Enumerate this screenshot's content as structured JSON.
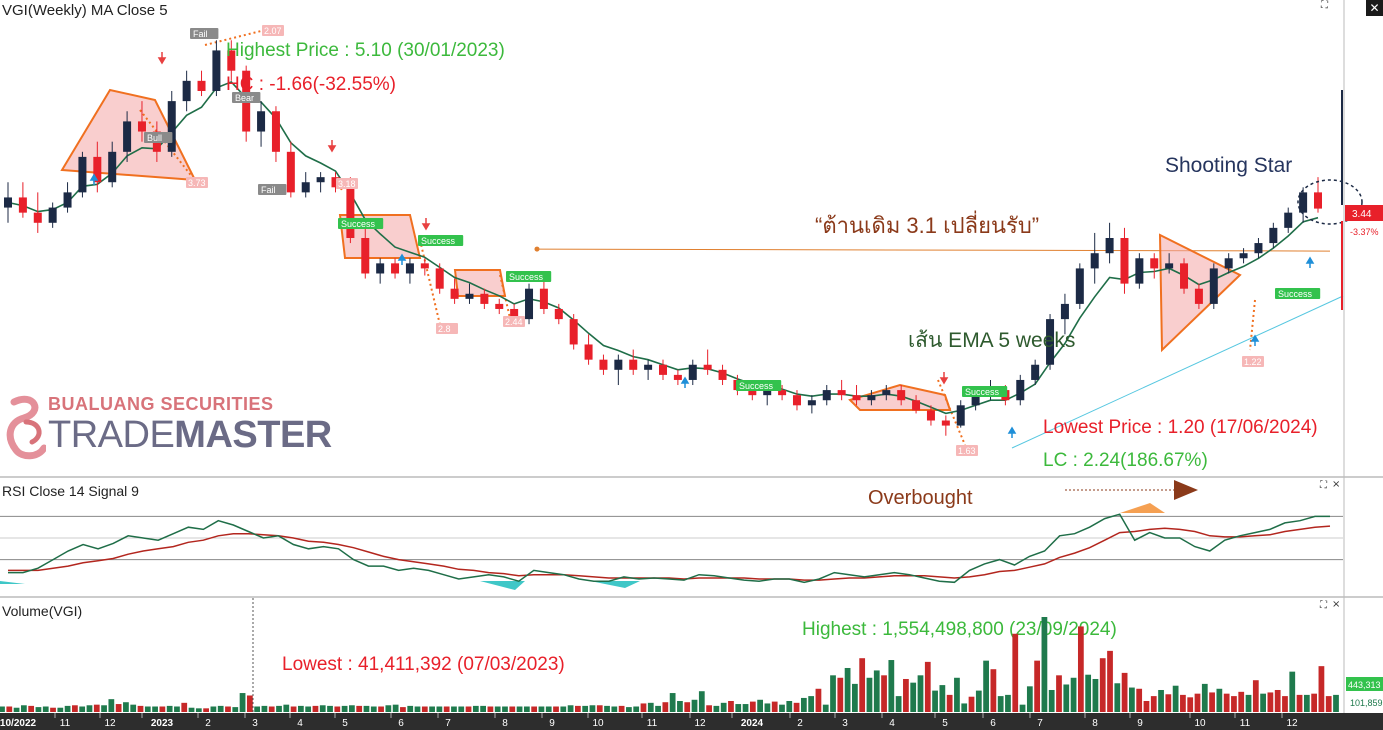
{
  "panels": {
    "price_title": "VGI(Weekly) MA Close 5",
    "rsi_title": "RSI Close 14 Signal 9",
    "volume_title": "Volume(VGI)"
  },
  "annotations": {
    "highest_price": "Highest Price : 5.10 (30/01/2023)",
    "hc": "HC : -1.66(-32.55%)",
    "lowest_price": "Lowest Price : 1.20 (17/06/2024)",
    "lc": "LC : 2.24(186.67%)",
    "resistance_note": "“ต้านเดิม 3.1 เปลี่ยนรับ”",
    "ema_note": "เส้น EMA 5 weeks",
    "shooting_star": "Shooting Star",
    "overbought": "Overbought",
    "volume_highest": "Highest : 1,554,498,800 (23/09/2024)",
    "volume_lowest": "Lowest : 41,411,392 (07/03/2023)"
  },
  "price_axis": {
    "last_price": "3.44",
    "last_change": "-3.37%",
    "accent": "#e8202a"
  },
  "volume_axis": {
    "last_volume": "443,313",
    "prev_volume": "101,859"
  },
  "logo": {
    "top_text": "BUALUANG SECURITIES",
    "main_text_a": "TRADE",
    "main_text_b": "MASTER"
  },
  "pattern_labels": [
    "Fail",
    "Success",
    "Bear",
    "Bull",
    "Success",
    "Success",
    "Success",
    "Success",
    "Success",
    "Fail"
  ],
  "target_labels": [
    "3.73",
    "3.18",
    "2.8",
    "2.44",
    "1.63",
    "1.22",
    "2.07",
    "5.14"
  ],
  "window_buttons": {
    "restore_icon": "⛶",
    "close_icon": "×",
    "close": "✕"
  },
  "colors": {
    "up_candle": "#1c2a45",
    "down_candle": "#e8202a",
    "ema": "#1f6e48",
    "rsi_line": "#1f6e48",
    "rsi_signal": "#b3261e",
    "volume_up": "#1f7a4d",
    "volume_down": "#c62828",
    "pattern_orange": "#f07020",
    "pattern_fill": "#f4a6a6",
    "trendline": "#56c7e0",
    "resistance": "#e08030",
    "green_text": "#3cb93c",
    "red_text": "#e8202a",
    "navy_text": "#26355e",
    "dark_green_text": "#2e5a2e",
    "brown_text": "#8b3a1a"
  },
  "chart_data": [
    {
      "type": "candlestick",
      "title": "VGI(Weekly) MA Close 5",
      "x_tick_labels": [
        "10/2022",
        "11",
        "12",
        "2023",
        "2",
        "3",
        "4",
        "5",
        "6",
        "7",
        "8",
        "9",
        "10",
        "11",
        "12",
        "2024",
        "2",
        "3",
        "4",
        "5",
        "6",
        "7",
        "8",
        "9",
        "10",
        "11",
        "12"
      ],
      "ylim": [
        1.0,
        5.3
      ],
      "ohlc": [
        [
          3.45,
          3.7,
          3.3,
          3.55
        ],
        [
          3.55,
          3.7,
          3.35,
          3.4
        ],
        [
          3.4,
          3.6,
          3.2,
          3.3
        ],
        [
          3.3,
          3.5,
          3.25,
          3.45
        ],
        [
          3.45,
          3.7,
          3.4,
          3.6
        ],
        [
          3.6,
          4.0,
          3.55,
          3.95
        ],
        [
          3.95,
          4.1,
          3.6,
          3.7
        ],
        [
          3.7,
          4.1,
          3.65,
          4.0
        ],
        [
          4.0,
          4.4,
          3.9,
          4.3
        ],
        [
          4.3,
          4.5,
          4.1,
          4.2
        ],
        [
          4.2,
          4.3,
          3.9,
          4.0
        ],
        [
          4.0,
          4.6,
          3.95,
          4.5
        ],
        [
          4.5,
          4.8,
          4.4,
          4.7
        ],
        [
          4.7,
          4.8,
          4.55,
          4.6
        ],
        [
          4.6,
          5.1,
          4.55,
          5.0
        ],
        [
          5.0,
          5.1,
          4.7,
          4.8
        ],
        [
          4.8,
          4.85,
          4.1,
          4.2
        ],
        [
          4.2,
          4.5,
          4.05,
          4.4
        ],
        [
          4.4,
          4.45,
          3.9,
          4.0
        ],
        [
          4.0,
          4.1,
          3.55,
          3.6
        ],
        [
          3.6,
          3.8,
          3.55,
          3.7
        ],
        [
          3.7,
          3.8,
          3.6,
          3.75
        ],
        [
          3.75,
          3.8,
          3.6,
          3.65
        ],
        [
          3.65,
          3.75,
          3.1,
          3.15
        ],
        [
          3.15,
          3.25,
          2.75,
          2.8
        ],
        [
          2.8,
          2.95,
          2.7,
          2.9
        ],
        [
          2.9,
          2.95,
          2.75,
          2.8
        ],
        [
          2.8,
          2.95,
          2.7,
          2.9
        ],
        [
          2.9,
          2.95,
          2.78,
          2.85
        ],
        [
          2.85,
          2.9,
          2.6,
          2.65
        ],
        [
          2.65,
          2.75,
          2.5,
          2.55
        ],
        [
          2.55,
          2.7,
          2.5,
          2.6
        ],
        [
          2.6,
          2.65,
          2.45,
          2.5
        ],
        [
          2.5,
          2.55,
          2.4,
          2.45
        ],
        [
          2.45,
          2.5,
          2.3,
          2.35
        ],
        [
          2.35,
          2.7,
          2.3,
          2.65
        ],
        [
          2.65,
          2.75,
          2.4,
          2.45
        ],
        [
          2.45,
          2.5,
          2.3,
          2.35
        ],
        [
          2.35,
          2.4,
          2.05,
          2.1
        ],
        [
          2.1,
          2.2,
          1.9,
          1.95
        ],
        [
          1.95,
          2.0,
          1.8,
          1.85
        ],
        [
          1.85,
          2.0,
          1.7,
          1.95
        ],
        [
          1.95,
          2.05,
          1.8,
          1.85
        ],
        [
          1.85,
          1.95,
          1.75,
          1.9
        ],
        [
          1.9,
          1.95,
          1.75,
          1.8
        ],
        [
          1.8,
          1.85,
          1.7,
          1.75
        ],
        [
          1.75,
          1.95,
          1.7,
          1.9
        ],
        [
          1.9,
          2.05,
          1.8,
          1.85
        ],
        [
          1.85,
          1.9,
          1.7,
          1.75
        ],
        [
          1.75,
          1.8,
          1.6,
          1.65
        ],
        [
          1.65,
          1.7,
          1.55,
          1.6
        ],
        [
          1.6,
          1.7,
          1.5,
          1.65
        ],
        [
          1.65,
          1.7,
          1.55,
          1.6
        ],
        [
          1.6,
          1.65,
          1.45,
          1.5
        ],
        [
          1.5,
          1.6,
          1.42,
          1.55
        ],
        [
          1.55,
          1.7,
          1.5,
          1.65
        ],
        [
          1.65,
          1.75,
          1.55,
          1.6
        ],
        [
          1.6,
          1.7,
          1.5,
          1.55
        ],
        [
          1.55,
          1.65,
          1.5,
          1.6
        ],
        [
          1.6,
          1.7,
          1.55,
          1.65
        ],
        [
          1.65,
          1.7,
          1.5,
          1.55
        ],
        [
          1.55,
          1.6,
          1.42,
          1.45
        ],
        [
          1.45,
          1.5,
          1.3,
          1.35
        ],
        [
          1.35,
          1.4,
          1.2,
          1.3
        ],
        [
          1.3,
          1.55,
          1.28,
          1.5
        ],
        [
          1.5,
          1.65,
          1.45,
          1.6
        ],
        [
          1.6,
          1.75,
          1.55,
          1.65
        ],
        [
          1.65,
          1.7,
          1.5,
          1.55
        ],
        [
          1.55,
          1.8,
          1.5,
          1.75
        ],
        [
          1.75,
          1.95,
          1.7,
          1.9
        ],
        [
          1.9,
          2.4,
          1.85,
          2.35
        ],
        [
          2.35,
          2.6,
          2.2,
          2.5
        ],
        [
          2.5,
          2.9,
          2.45,
          2.85
        ],
        [
          2.85,
          3.2,
          2.7,
          3.0
        ],
        [
          3.0,
          3.3,
          2.9,
          3.15
        ],
        [
          3.15,
          3.25,
          2.6,
          2.7
        ],
        [
          2.7,
          3.0,
          2.65,
          2.95
        ],
        [
          2.95,
          3.0,
          2.75,
          2.85
        ],
        [
          2.85,
          3.0,
          2.8,
          2.9
        ],
        [
          2.9,
          2.95,
          2.6,
          2.65
        ],
        [
          2.65,
          2.7,
          2.45,
          2.5
        ],
        [
          2.5,
          2.9,
          2.45,
          2.85
        ],
        [
          2.85,
          3.0,
          2.8,
          2.95
        ],
        [
          2.95,
          3.05,
          2.9,
          3.0
        ],
        [
          3.0,
          3.15,
          2.95,
          3.1
        ],
        [
          3.1,
          3.3,
          3.05,
          3.25
        ],
        [
          3.25,
          3.45,
          3.2,
          3.4
        ],
        [
          3.4,
          3.65,
          3.3,
          3.6
        ],
        [
          3.6,
          3.75,
          3.4,
          3.44
        ]
      ],
      "ema5": [
        3.5,
        3.47,
        3.41,
        3.43,
        3.5,
        3.66,
        3.68,
        3.79,
        3.96,
        4.04,
        4.03,
        4.19,
        4.36,
        4.44,
        4.63,
        4.69,
        4.53,
        4.49,
        4.33,
        4.09,
        3.96,
        3.89,
        3.81,
        3.59,
        3.33,
        3.19,
        3.06,
        3.01,
        2.96,
        2.86,
        2.76,
        2.71,
        2.64,
        2.58,
        2.5,
        2.55,
        2.52,
        2.46,
        2.34,
        2.21,
        2.09,
        2.04,
        1.98,
        1.95,
        1.9,
        1.85,
        1.87,
        1.86,
        1.82,
        1.76,
        1.71,
        1.69,
        1.66,
        1.61,
        1.59,
        1.61,
        1.61,
        1.59,
        1.59,
        1.61,
        1.59,
        1.54,
        1.48,
        1.42,
        1.45,
        1.5,
        1.55,
        1.55,
        1.62,
        1.71,
        1.92,
        2.11,
        2.36,
        2.57,
        2.76,
        2.74,
        2.81,
        2.82,
        2.85,
        2.78,
        2.69,
        2.74,
        2.81,
        2.87,
        2.95,
        3.05,
        3.17,
        3.31,
        3.35
      ]
    },
    {
      "type": "line",
      "title": "RSI Close 14 Signal 9",
      "series": [
        {
          "name": "RSI",
          "values": [
            18,
            18,
            22,
            30,
            38,
            44,
            40,
            45,
            52,
            50,
            48,
            54,
            60,
            58,
            66,
            62,
            56,
            50,
            52,
            44,
            40,
            42,
            40,
            30,
            24,
            24,
            20,
            22,
            20,
            16,
            12,
            14,
            16,
            14,
            10,
            20,
            18,
            16,
            12,
            10,
            10,
            14,
            12,
            13,
            12,
            11,
            16,
            15,
            13,
            11,
            10,
            12,
            12,
            9,
            12,
            18,
            16,
            14,
            16,
            18,
            16,
            13,
            10,
            9,
            20,
            26,
            30,
            25,
            33,
            38,
            52,
            54,
            60,
            68,
            72,
            48,
            55,
            50,
            50,
            42,
            38,
            48,
            52,
            55,
            58,
            64,
            66,
            70,
            70
          ]
        },
        {
          "name": "Signal",
          "values": [
            20,
            20,
            20,
            22,
            24,
            27,
            29,
            31,
            35,
            38,
            40,
            42,
            46,
            48,
            52,
            54,
            54,
            53,
            52,
            50,
            47,
            46,
            44,
            41,
            37,
            33,
            30,
            28,
            26,
            24,
            21,
            20,
            18,
            17,
            15,
            16,
            16,
            16,
            15,
            14,
            13,
            13,
            13,
            13,
            13,
            12,
            13,
            13,
            13,
            13,
            12,
            12,
            12,
            11,
            11,
            12,
            13,
            13,
            14,
            15,
            15,
            15,
            14,
            13,
            14,
            16,
            19,
            20,
            23,
            26,
            32,
            36,
            41,
            48,
            55,
            56,
            58,
            59,
            58,
            56,
            52,
            51,
            51,
            52,
            53,
            56,
            58,
            60,
            61
          ]
        }
      ],
      "ylim": [
        0,
        100
      ]
    },
    {
      "type": "bar",
      "title": "Volume(VGI)",
      "ylim": [
        0,
        1600000000
      ],
      "values": [
        90,
        90,
        70,
        110,
        100,
        80,
        90,
        70,
        70,
        100,
        110,
        90,
        110,
        120,
        110,
        210,
        130,
        160,
        120,
        100,
        90,
        90,
        90,
        100,
        90,
        150,
        70,
        60,
        60,
        90,
        100,
        90,
        80,
        310,
        270,
        90,
        100,
        90,
        100,
        120,
        90,
        100,
        90,
        100,
        110,
        100,
        90,
        100,
        110,
        100,
        100,
        90,
        90,
        110,
        120,
        80,
        100,
        90,
        90,
        90,
        90,
        90,
        90,
        90,
        90,
        100,
        100,
        90,
        90,
        90,
        90,
        90,
        90,
        90,
        90,
        90,
        90,
        90,
        110,
        100,
        100,
        110,
        110,
        100,
        90,
        100,
        80,
        90,
        140,
        150,
        100,
        160,
        310,
        180,
        160,
        200,
        340,
        110,
        100,
        150,
        180,
        130,
        130,
        170,
        200,
        140,
        170,
        120,
        180,
        150,
        230,
        260,
        380,
        120,
        600,
        560,
        720,
        460,
        880,
        560,
        680,
        600,
        850,
        260,
        540,
        480,
        600,
        820,
        350,
        440,
        280,
        560,
        140,
        250,
        350,
        840,
        700,
        260,
        280,
        1280,
        120,
        420,
        840,
        1554,
        360,
        600,
        450,
        560,
        1400,
        610,
        540,
        880,
        1000,
        470,
        640,
        400,
        380,
        180,
        260,
        360,
        290,
        430,
        280,
        240,
        300,
        460,
        320,
        380,
        300,
        260,
        330,
        280,
        520,
        300,
        320,
        360,
        260,
        660,
        280,
        280,
        300,
        750,
        260,
        280
      ],
      "values_note_unit": "relative bars; volume axis labels shown as 443,313 and 101,859",
      "highest": {
        "value": 1554498800,
        "date": "23/09/2024"
      },
      "lowest": {
        "value": 41411392,
        "date": "07/03/2023"
      }
    }
  ]
}
